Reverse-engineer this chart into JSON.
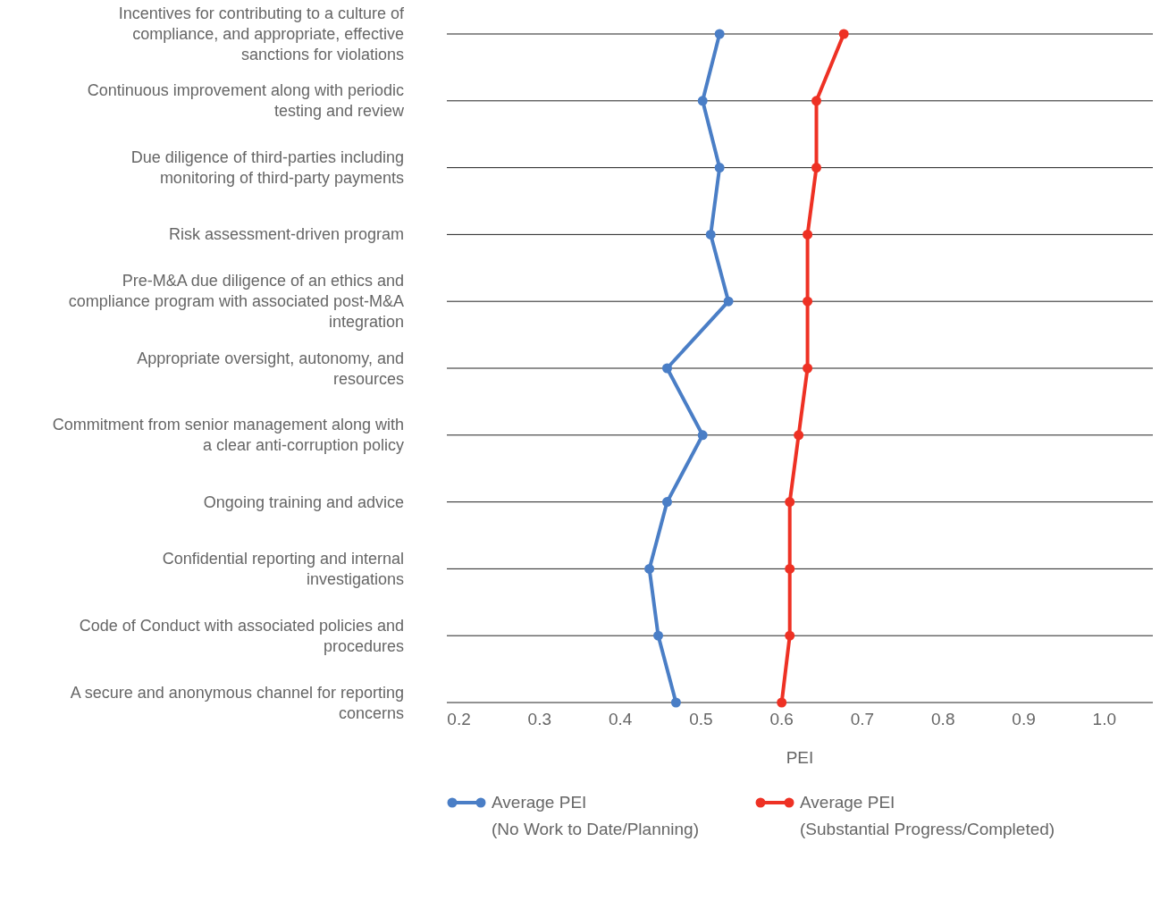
{
  "chart_data": {
    "type": "line",
    "orientation": "horizontal",
    "xlabel": "PEI",
    "categories": [
      "Incentives for contributing to a culture of compliance, and appropriate, effective sanctions for violations",
      "Continuous improvement along with periodic testing and review",
      "Due diligence of third-parties including monitoring of third-party payments",
      "Risk assessment-driven program",
      "Pre-M&A due diligence of an ethics and compliance program with associated post-M&A integration",
      "Appropriate oversight, autonomy, and resources",
      "Commitment from senior management along with a clear anti-corruption policy",
      "Ongoing training and advice",
      "Confidential reporting and internal investigations",
      "Code of Conduct with associated policies and procedures",
      "A secure and anonymous channel for reporting concerns"
    ],
    "series": [
      {
        "name": "Average PEI (No Work to Date/Planning)",
        "color": "#4a7ec6",
        "values": [
          0.523,
          0.502,
          0.523,
          0.512,
          0.534,
          0.458,
          0.502,
          0.458,
          0.436,
          0.447,
          0.469
        ]
      },
      {
        "name": "Average PEI (Substantial Progress/Completed)",
        "color": "#ee3124",
        "values": [
          0.677,
          0.643,
          0.643,
          0.632,
          0.632,
          0.632,
          0.621,
          0.61,
          0.61,
          0.61,
          0.6
        ]
      }
    ],
    "xlim": [
      0.185,
      1.06
    ],
    "xticks": [
      {
        "value": 0.2,
        "label": "0.2"
      },
      {
        "value": 0.3,
        "label": "0.3"
      },
      {
        "value": 0.4,
        "label": "0.4"
      },
      {
        "value": 0.5,
        "label": "0.5"
      },
      {
        "value": 0.6,
        "label": "0.6"
      },
      {
        "value": 0.7,
        "label": "0.7"
      },
      {
        "value": 0.8,
        "label": "0.8"
      },
      {
        "value": 0.9,
        "label": "0.9"
      },
      {
        "value": 1.0,
        "label": "1.0"
      }
    ],
    "grid": "y",
    "legend": "bottom",
    "marker": "circle",
    "line_style": "solid"
  }
}
